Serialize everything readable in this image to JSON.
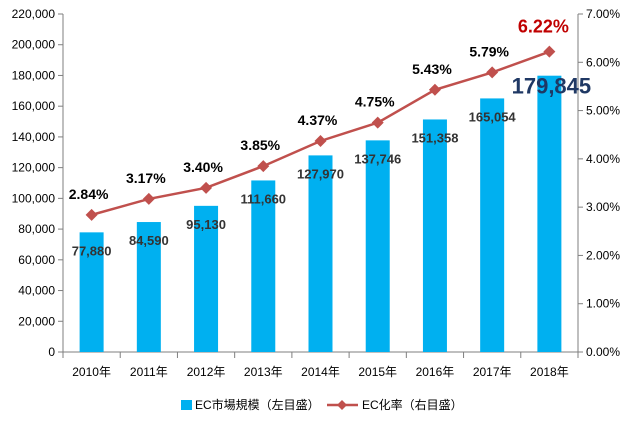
{
  "chart_data": {
    "type": "bar+line",
    "categories": [
      "2010年",
      "2011年",
      "2012年",
      "2013年",
      "2014年",
      "2015年",
      "2016年",
      "2017年",
      "2018年"
    ],
    "series": [
      {
        "name": "EC市場規模（左目盛）",
        "type": "bar",
        "axis": "left",
        "values": [
          77880,
          84590,
          95130,
          111660,
          127970,
          137746,
          151358,
          165054,
          179845
        ],
        "labels": [
          "77,880",
          "84,590",
          "95,130",
          "111,660",
          "127,970",
          "137,746",
          "151,358",
          "165,054",
          "179,845"
        ],
        "color": "#00b0f0"
      },
      {
        "name": "EC化率（右目盛）",
        "type": "line",
        "axis": "right",
        "values": [
          2.84,
          3.17,
          3.4,
          3.85,
          4.37,
          4.75,
          5.43,
          5.79,
          6.22
        ],
        "labels": [
          "2.84%",
          "3.17%",
          "3.40%",
          "3.85%",
          "4.37%",
          "4.75%",
          "5.43%",
          "5.79%",
          "6.22%"
        ],
        "color": "#c0504d"
      }
    ],
    "y_left": {
      "min": 0,
      "max": 220000,
      "ticks": [
        "0",
        "20,000",
        "40,000",
        "60,000",
        "80,000",
        "100,000",
        "120,000",
        "140,000",
        "160,000",
        "180,000",
        "200,000",
        "220,000"
      ]
    },
    "y_right": {
      "min": 0,
      "max": 7,
      "ticks": [
        "0.00%",
        "1.00%",
        "2.00%",
        "3.00%",
        "4.00%",
        "5.00%",
        "6.00%",
        "7.00%"
      ]
    },
    "grid": false,
    "legend_position": "bottom"
  }
}
